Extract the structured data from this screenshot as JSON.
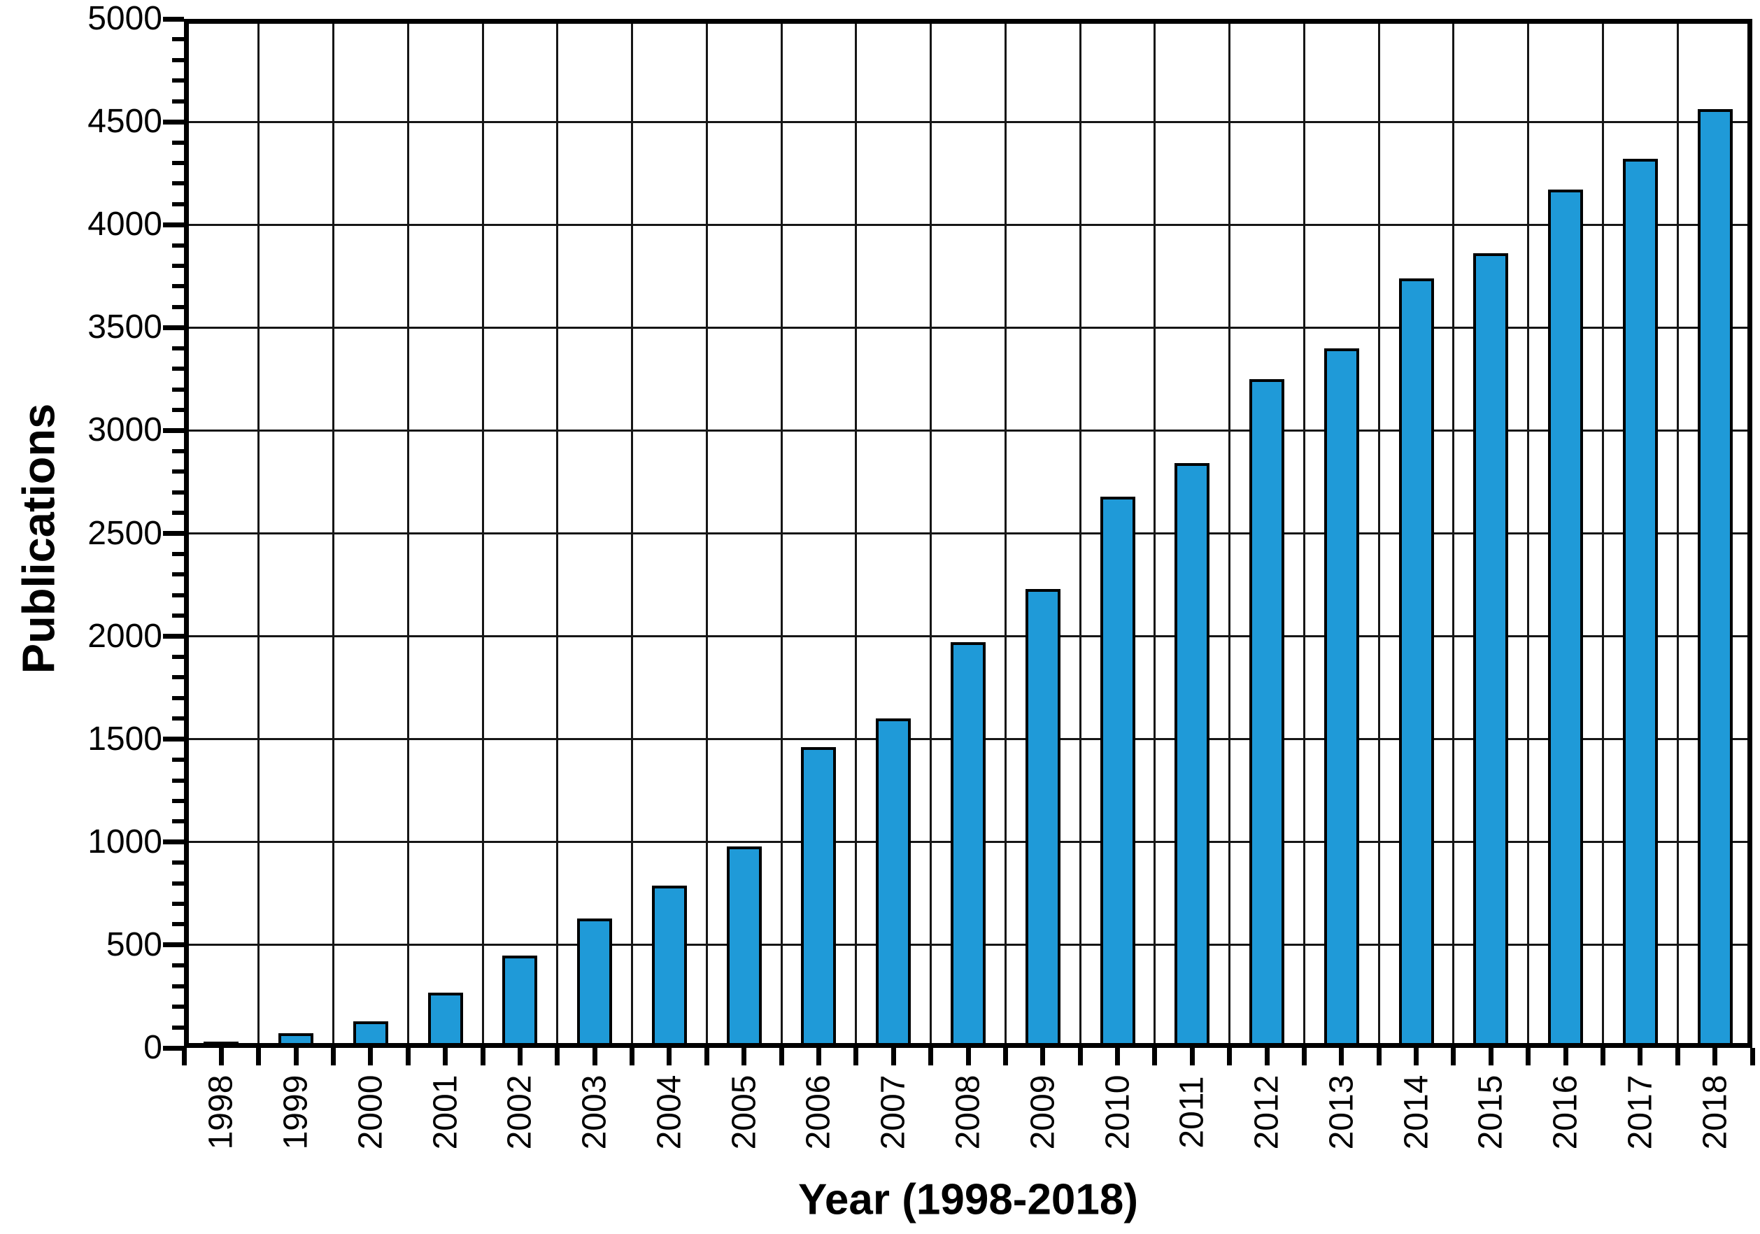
{
  "figure": {
    "background": "#ffffff"
  },
  "chart_data": {
    "type": "bar",
    "title": "",
    "xlabel": "Year (1998-2018)",
    "ylabel": "Publications",
    "categories": [
      "1998",
      "1999",
      "2000",
      "2001",
      "2002",
      "2003",
      "2004",
      "2005",
      "2006",
      "2007",
      "2008",
      "2009",
      "2010",
      "2011",
      "2012",
      "2013",
      "2014",
      "2015",
      "2016",
      "2017",
      "2018"
    ],
    "values": [
      30,
      70,
      130,
      270,
      450,
      630,
      790,
      980,
      1460,
      1600,
      1970,
      2230,
      2680,
      2840,
      3250,
      3400,
      3740,
      3860,
      4170,
      4320,
      4560
    ],
    "ylim": [
      0,
      5000
    ],
    "ytick_step": 500,
    "y_minor_tick_step": 100,
    "ytick_labels": [
      "0",
      "500",
      "1000",
      "1500",
      "2000",
      "2500",
      "3000",
      "3500",
      "4000",
      "4500",
      "5000"
    ],
    "grid": "major-both",
    "legend_position": "none",
    "bar_color": "#1f9ad8",
    "bar_border_color": "#000000",
    "grid_color": "#161616",
    "axis_color": "#000000",
    "text_color": "#000000"
  }
}
